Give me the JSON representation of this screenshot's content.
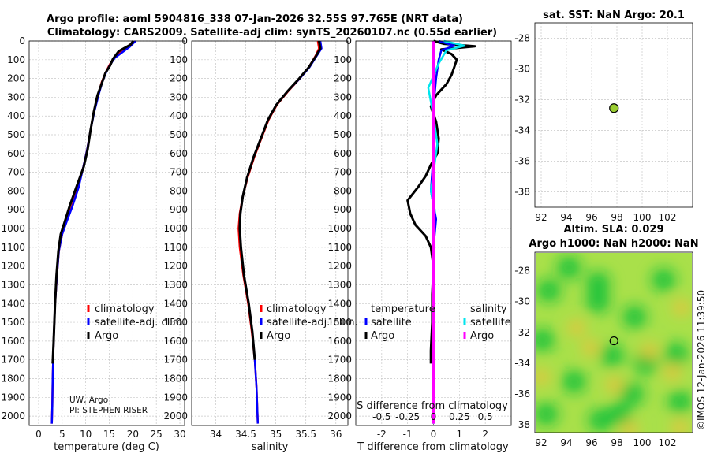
{
  "title": {
    "line1": "Argo profile: aoml 5904816_338 07-Jan-2026 32.55S 97.765E (NRT data)",
    "line2": "Climatology: CARS2009. Satellite-adj clim: synTS_20260107.nc (0.55d earlier)"
  },
  "colors": {
    "climatology": "#ff0000",
    "satellite": "#0000ff",
    "argo": "#000000",
    "sat_sal": "#00e5ee",
    "argo_sal": "#ff00ff",
    "marker": "#9acd32"
  },
  "credit": {
    "line1": "UW, Argo",
    "line2": "PI: STEPHEN RISER"
  },
  "watermark": "©IMOS 12-Jan-2026 11:39:50",
  "depth_ticks": [
    0,
    100,
    200,
    300,
    400,
    500,
    600,
    700,
    800,
    900,
    1000,
    1100,
    1200,
    1300,
    1400,
    1500,
    1600,
    1700,
    1800,
    1900,
    2000
  ],
  "chart_data": [
    {
      "type": "line",
      "name": "temperature-profile",
      "xlabel": "temperature (deg C)",
      "xlim": [
        -2,
        31
      ],
      "ylim": [
        2050,
        0
      ],
      "xticks": [
        0,
        5,
        10,
        15,
        20,
        25,
        30
      ],
      "legend": {
        "climatology": "climatology",
        "satellite": "satellite-adj. clim.",
        "argo": "Argo"
      },
      "series": [
        {
          "name": "climatology",
          "color": "#ff0000",
          "points": [
            [
              20.2,
              0
            ],
            [
              19.0,
              30
            ],
            [
              17.4,
              60
            ],
            [
              16.0,
              90
            ],
            [
              15.0,
              130
            ],
            [
              14.2,
              170
            ],
            [
              13.4,
              220
            ],
            [
              12.6,
              290
            ],
            [
              11.7,
              380
            ],
            [
              11.0,
              480
            ],
            [
              10.3,
              580
            ],
            [
              9.5,
              670
            ],
            [
              8.4,
              780
            ],
            [
              7.1,
              880
            ],
            [
              5.9,
              960
            ],
            [
              5.0,
              1030
            ],
            [
              4.3,
              1120
            ],
            [
              3.9,
              1250
            ],
            [
              3.5,
              1400
            ],
            [
              3.2,
              1600
            ],
            [
              3.0,
              1800
            ],
            [
              2.9,
              1950
            ],
            [
              2.8,
              2040
            ]
          ]
        },
        {
          "name": "satellite",
          "color": "#0000ff",
          "points": [
            [
              20.6,
              0
            ],
            [
              19.4,
              30
            ],
            [
              17.8,
              60
            ],
            [
              16.2,
              90
            ],
            [
              15.1,
              130
            ],
            [
              14.3,
              170
            ],
            [
              13.5,
              220
            ],
            [
              12.7,
              290
            ],
            [
              11.8,
              380
            ],
            [
              11.0,
              480
            ],
            [
              10.3,
              580
            ],
            [
              9.5,
              670
            ],
            [
              8.5,
              780
            ],
            [
              7.2,
              880
            ],
            [
              6.0,
              960
            ],
            [
              5.0,
              1030
            ],
            [
              4.3,
              1120
            ],
            [
              3.9,
              1250
            ],
            [
              3.5,
              1400
            ],
            [
              3.2,
              1600
            ],
            [
              3.0,
              1800
            ],
            [
              2.9,
              1950
            ],
            [
              2.8,
              2040
            ]
          ]
        },
        {
          "name": "argo",
          "color": "#000000",
          "points": [
            [
              20.1,
              0
            ],
            [
              19.5,
              20
            ],
            [
              17.0,
              55
            ],
            [
              15.8,
              95
            ],
            [
              15.2,
              130
            ],
            [
              14.2,
              170
            ],
            [
              13.5,
              220
            ],
            [
              12.5,
              290
            ],
            [
              11.7,
              380
            ],
            [
              11.0,
              480
            ],
            [
              10.4,
              580
            ],
            [
              9.6,
              670
            ],
            [
              8.0,
              780
            ],
            [
              6.6,
              880
            ],
            [
              5.6,
              960
            ],
            [
              4.7,
              1030
            ],
            [
              4.2,
              1120
            ],
            [
              3.8,
              1250
            ],
            [
              3.5,
              1400
            ],
            [
              3.2,
              1600
            ],
            [
              3.0,
              1720
            ]
          ]
        }
      ]
    },
    {
      "type": "line",
      "name": "salinity-profile",
      "xlabel": "salinity",
      "xlim": [
        33.6,
        36.2
      ],
      "ylim": [
        2050,
        0
      ],
      "xticks": [
        34,
        34.5,
        35,
        35.5,
        36
      ],
      "legend": {
        "climatology": "climatology",
        "satellite": "satellite-adj. clim.",
        "argo": "Argo"
      },
      "series": [
        {
          "name": "climatology",
          "color": "#ff0000",
          "points": [
            [
              35.7,
              0
            ],
            [
              35.72,
              40
            ],
            [
              35.66,
              80
            ],
            [
              35.55,
              140
            ],
            [
              35.4,
              200
            ],
            [
              35.2,
              270
            ],
            [
              35.02,
              340
            ],
            [
              34.88,
              420
            ],
            [
              34.76,
              520
            ],
            [
              34.64,
              620
            ],
            [
              34.53,
              730
            ],
            [
              34.45,
              830
            ],
            [
              34.4,
              920
            ],
            [
              34.38,
              1000
            ],
            [
              34.4,
              1100
            ],
            [
              34.46,
              1250
            ],
            [
              34.54,
              1400
            ],
            [
              34.6,
              1550
            ],
            [
              34.65,
              1700
            ],
            [
              34.68,
              1850
            ],
            [
              34.7,
              2040
            ]
          ]
        },
        {
          "name": "satellite",
          "color": "#0000ff",
          "points": [
            [
              35.74,
              0
            ],
            [
              35.76,
              40
            ],
            [
              35.68,
              80
            ],
            [
              35.56,
              140
            ],
            [
              35.4,
              200
            ],
            [
              35.19,
              270
            ],
            [
              35.01,
              340
            ],
            [
              34.87,
              420
            ],
            [
              34.75,
              520
            ],
            [
              34.63,
              620
            ],
            [
              34.52,
              730
            ],
            [
              34.45,
              830
            ],
            [
              34.41,
              920
            ],
            [
              34.4,
              1000
            ],
            [
              34.42,
              1100
            ],
            [
              34.47,
              1250
            ],
            [
              34.55,
              1400
            ],
            [
              34.61,
              1550
            ],
            [
              34.65,
              1700
            ],
            [
              34.68,
              1850
            ],
            [
              34.7,
              2040
            ]
          ]
        },
        {
          "name": "argo",
          "color": "#000000",
          "points": [
            [
              35.72,
              0
            ],
            [
              35.74,
              40
            ],
            [
              35.67,
              80
            ],
            [
              35.55,
              140
            ],
            [
              35.39,
              200
            ],
            [
              35.19,
              270
            ],
            [
              35.01,
              340
            ],
            [
              34.87,
              420
            ],
            [
              34.75,
              520
            ],
            [
              34.63,
              620
            ],
            [
              34.52,
              730
            ],
            [
              34.45,
              830
            ],
            [
              34.41,
              920
            ],
            [
              34.4,
              1000
            ],
            [
              34.42,
              1100
            ],
            [
              34.47,
              1250
            ],
            [
              34.55,
              1400
            ],
            [
              34.61,
              1550
            ],
            [
              34.65,
              1700
            ]
          ]
        }
      ]
    },
    {
      "type": "line",
      "name": "difference-profile",
      "xlabel": "T difference from climatology",
      "top_xlabel": "S difference from climatology",
      "xlim": [
        -3,
        3
      ],
      "ylim": [
        2050,
        0
      ],
      "xticks": [
        -2,
        -1,
        0,
        1,
        2
      ],
      "top_ticks": [
        "-0.5",
        "-0.25",
        "0",
        "0.25",
        "0.5"
      ],
      "top_tick_positions": [
        -2,
        -1,
        0,
        1,
        2
      ],
      "legend": {
        "temp_heading": "temperature",
        "sal_heading": "salinity",
        "satellite": "satellite",
        "argo": "Argo"
      },
      "series": [
        {
          "name": "argo-temperature",
          "color": "#000000",
          "points": [
            [
              0,
              0
            ],
            [
              0.4,
              15
            ],
            [
              1.6,
              28
            ],
            [
              0.3,
              45
            ],
            [
              0.7,
              70
            ],
            [
              0.9,
              100
            ],
            [
              0.8,
              140
            ],
            [
              0.7,
              180
            ],
            [
              0.5,
              230
            ],
            [
              0.1,
              290
            ],
            [
              -0.1,
              350
            ],
            [
              0.1,
              430
            ],
            [
              0.2,
              520
            ],
            [
              0.15,
              600
            ],
            [
              -0.1,
              660
            ],
            [
              -0.3,
              720
            ],
            [
              -0.6,
              780
            ],
            [
              -1.0,
              850
            ],
            [
              -0.9,
              920
            ],
            [
              -0.7,
              980
            ],
            [
              -0.3,
              1040
            ],
            [
              -0.1,
              1100
            ],
            [
              0,
              1200
            ],
            [
              -0.05,
              1350
            ],
            [
              -0.05,
              1500
            ],
            [
              -0.1,
              1650
            ],
            [
              -0.1,
              1720
            ]
          ]
        },
        {
          "name": "satellite-temperature",
          "color": "#0000ff",
          "points": [
            [
              0.2,
              0
            ],
            [
              0.8,
              25
            ],
            [
              0.3,
              50
            ],
            [
              0.2,
              100
            ],
            [
              0.1,
              200
            ],
            [
              0,
              350
            ],
            [
              0,
              600
            ],
            [
              -0.1,
              800
            ],
            [
              0.1,
              950
            ],
            [
              0,
              1100
            ],
            [
              0,
              1400
            ],
            [
              0,
              2040
            ]
          ]
        },
        {
          "name": "satellite-salinity",
          "color": "#00e5ee",
          "points": [
            [
              0.4,
              0
            ],
            [
              1.2,
              25
            ],
            [
              0.5,
              50
            ],
            [
              0.2,
              120
            ],
            [
              -0.2,
              250
            ],
            [
              0,
              400
            ],
            [
              0.15,
              550
            ],
            [
              0,
              700
            ],
            [
              -0.1,
              800
            ],
            [
              0.05,
              900
            ],
            [
              0,
              1050
            ],
            [
              0,
              1300
            ],
            [
              0,
              2040
            ]
          ]
        },
        {
          "name": "argo-salinity",
          "color": "#ff00ff",
          "points": [
            [
              0,
              0
            ],
            [
              0,
              2040
            ]
          ]
        }
      ]
    },
    {
      "type": "scatter",
      "name": "sst-location-map",
      "title": "sat. SST: NaN Argo: 20.1",
      "xlim": [
        91.5,
        104
      ],
      "ylim": [
        -39,
        -27
      ],
      "xticks": [
        92,
        94,
        96,
        98,
        100,
        102
      ],
      "yticks": [
        -28,
        -30,
        -32,
        -34,
        -36,
        -38
      ],
      "points": [
        {
          "lon": 97.765,
          "lat": -32.55
        }
      ]
    },
    {
      "type": "heatmap",
      "name": "sla-map",
      "title_line1": "Altim. SLA: 0.029",
      "title_line2": "Argo h1000: NaN h2000: NaN",
      "xlim": [
        91.5,
        104
      ],
      "ylim": [
        -38.5,
        -26.8
      ],
      "xticks": [
        92,
        94,
        96,
        98,
        100,
        102
      ],
      "yticks": [
        -28,
        -30,
        -32,
        -34,
        -36,
        -38
      ],
      "points": [
        {
          "lon": 97.765,
          "lat": -32.55
        }
      ],
      "low_spots": [
        [
          94.2,
          -27.8
        ],
        [
          92.6,
          -29.3
        ],
        [
          96.5,
          -28.8
        ],
        [
          101.7,
          -28.6
        ],
        [
          99.4,
          -31.0
        ],
        [
          96.5,
          -30.0
        ],
        [
          92.1,
          -32.5
        ],
        [
          97.6,
          -33.5
        ],
        [
          100.3,
          -34.0
        ],
        [
          94.6,
          -35.2
        ],
        [
          99.2,
          -36.0
        ],
        [
          102.7,
          -33.4
        ],
        [
          96.7,
          -37.7
        ],
        [
          92.4,
          -37.3
        ],
        [
          103.0,
          -36.5
        ],
        [
          98.2,
          -37.3
        ]
      ],
      "high_spots": [
        [
          95.9,
          -33.0
        ],
        [
          94.8,
          -31.7
        ],
        [
          100.6,
          -33.2
        ],
        [
          102.4,
          -34.6
        ],
        [
          97.8,
          -35.4
        ],
        [
          103.0,
          -38.2
        ],
        [
          92.0,
          -34.9
        ],
        [
          103.1,
          -30.4
        ],
        [
          99.0,
          -38.3
        ]
      ]
    }
  ]
}
